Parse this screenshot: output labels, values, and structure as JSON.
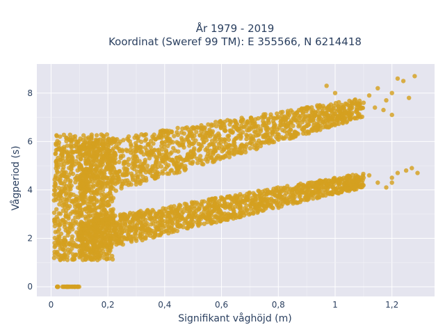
{
  "chart_data": {
    "type": "scatter",
    "title": "År 1979 - 2019",
    "subtitle": "Koordinat (Sweref 99 TM): E 355566, N 6214418",
    "xlabel": "Signifikant våghöjd (m)",
    "ylabel": "Vågperiod (s)",
    "xlim": [
      -0.05,
      1.35
    ],
    "ylim": [
      -0.4,
      9.2
    ],
    "x_ticks": [
      0,
      0.2,
      0.4,
      0.6,
      0.8,
      1,
      1.2
    ],
    "x_tick_labels": [
      "0",
      "0,2",
      "0,4",
      "0,6",
      "0,8",
      "1",
      "1,2"
    ],
    "y_ticks": [
      0,
      2,
      4,
      6,
      8
    ],
    "y_tick_labels": [
      "0",
      "2",
      "4",
      "6",
      "8"
    ],
    "grid": true,
    "legend": "none",
    "marker_color": "#d4a020",
    "background_color": "#e5e5ef",
    "series": [
      {
        "clusters": [
          {
            "x_range": [
              0.01,
              0.22
            ],
            "y_range": [
              1.1,
              6.3
            ]
          },
          {
            "x_range": [
              0.1,
              1.1
            ],
            "y_lower_line": [
              [
                0.1,
                1.3
              ],
              [
                1.1,
                4.1
              ]
            ],
            "y_upper_line": [
              [
                0.1,
                2.7
              ],
              [
                1.1,
                4.7
              ]
            ]
          },
          {
            "x_range": [
              0.1,
              1.1
            ],
            "y_lower_line": [
              [
                0.1,
                3.5
              ],
              [
                1.1,
                7.0
              ]
            ],
            "y_upper_line": [
              [
                0.1,
                5.9
              ],
              [
                1.1,
                7.8
              ]
            ]
          }
        ],
        "outliers_low": {
          "x_range": [
            0.02,
            0.1
          ],
          "y": 0
        },
        "outliers_upper_branch": [
          [
            1.12,
            7.9
          ],
          [
            1.15,
            8.2
          ],
          [
            1.18,
            7.7
          ],
          [
            1.2,
            8.0
          ],
          [
            1.22,
            8.6
          ],
          [
            1.24,
            8.5
          ],
          [
            1.26,
            7.8
          ],
          [
            1.28,
            8.7
          ],
          [
            1.2,
            7.1
          ],
          [
            1.14,
            7.4
          ],
          [
            1.0,
            8.0
          ],
          [
            0.97,
            8.3
          ],
          [
            1.05,
            7.2
          ],
          [
            1.1,
            7.6
          ],
          [
            1.17,
            7.3
          ]
        ],
        "outliers_lower_branch": [
          [
            1.12,
            4.6
          ],
          [
            1.15,
            4.3
          ],
          [
            1.18,
            4.1
          ],
          [
            1.2,
            4.5
          ],
          [
            1.22,
            4.7
          ],
          [
            1.25,
            4.8
          ],
          [
            1.27,
            4.9
          ],
          [
            1.29,
            4.7
          ],
          [
            1.2,
            4.3
          ],
          [
            1.1,
            4.5
          ]
        ]
      }
    ]
  }
}
